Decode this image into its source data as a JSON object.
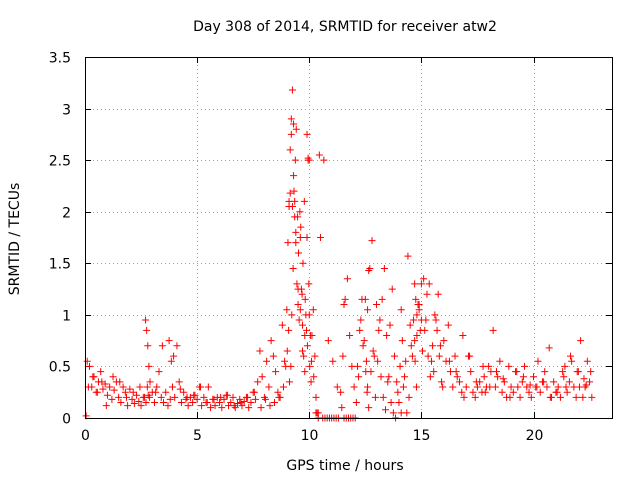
{
  "chart_data": {
    "type": "scatter",
    "title": "Day 308 of 2014, SRMTID for receiver atw2",
    "xlabel": "GPS time / hours",
    "ylabel": "SRMTID / TECUs",
    "xlim": [
      0,
      23.5
    ],
    "ylim": [
      0,
      3.5
    ],
    "xticks": [
      0,
      5,
      10,
      15,
      20
    ],
    "xtick_labels": [
      "0",
      "5",
      "10",
      "15",
      "20"
    ],
    "yticks": [
      0,
      0.5,
      1,
      1.5,
      2,
      2.5,
      3,
      3.5
    ],
    "ytick_labels": [
      "0",
      "0.5",
      "1",
      "1.5",
      "2",
      "2.5",
      "3",
      "3.5"
    ],
    "grid": true,
    "marker": "+",
    "colors": {
      "series": "#ff0000",
      "axis": "#000000",
      "grid": "#a0a0a0"
    },
    "series": [
      {
        "name": "SRMTID",
        "x": [
          0.05,
          0.1,
          0.2,
          0.3,
          0.4,
          0.5,
          0.6,
          0.7,
          0.8,
          0.9,
          1.0,
          1.1,
          1.2,
          1.3,
          1.4,
          1.5,
          1.6,
          1.7,
          1.8,
          1.9,
          2.0,
          2.1,
          2.2,
          2.3,
          2.4,
          2.5,
          2.6,
          2.7,
          2.75,
          2.8,
          2.85,
          2.9,
          3.0,
          3.1,
          3.2,
          3.3,
          3.4,
          3.5,
          3.6,
          3.7,
          3.8,
          3.9,
          4.0,
          4.1,
          4.2,
          4.3,
          4.4,
          4.5,
          4.6,
          4.7,
          4.8,
          4.9,
          5.0,
          5.1,
          5.2,
          5.3,
          5.4,
          5.5,
          5.6,
          5.7,
          5.8,
          5.9,
          6.0,
          6.1,
          6.2,
          6.3,
          6.4,
          6.5,
          6.6,
          6.7,
          6.8,
          6.9,
          7.0,
          7.1,
          7.2,
          7.3,
          7.4,
          7.5,
          7.6,
          7.7,
          7.8,
          7.9,
          8.0,
          8.1,
          8.2,
          8.3,
          8.4,
          8.5,
          8.6,
          8.7,
          8.8,
          8.9,
          9.0,
          9.05,
          9.1,
          9.15,
          9.2,
          9.25,
          9.3,
          9.35,
          9.4,
          9.45,
          9.5,
          9.55,
          9.6,
          9.65,
          9.7,
          9.75,
          9.8,
          9.85,
          9.9,
          9.95,
          10.0,
          10.05,
          10.1,
          10.2,
          10.3,
          10.35,
          10.4,
          10.5,
          10.6,
          10.7,
          10.8,
          10.9,
          11.0,
          11.1,
          11.2,
          11.3,
          11.4,
          11.5,
          11.6,
          11.7,
          11.8,
          11.9,
          12.0,
          12.1,
          12.2,
          12.3,
          12.4,
          12.5,
          12.55,
          12.6,
          12.7,
          12.8,
          12.9,
          13.0,
          13.1,
          13.2,
          13.3,
          13.4,
          13.5,
          13.6,
          13.7,
          13.8,
          13.9,
          14.0,
          14.1,
          14.2,
          14.3,
          14.4,
          14.5,
          14.6,
          14.7,
          14.75,
          14.8,
          14.9,
          15.0,
          15.1,
          15.2,
          15.3,
          15.4,
          15.5,
          15.6,
          15.7,
          15.8,
          15.9,
          16.0,
          16.1,
          16.2,
          16.3,
          16.4,
          16.5,
          16.6,
          16.7,
          16.8,
          16.9,
          17.0,
          17.1,
          17.2,
          17.3,
          17.4,
          17.5,
          17.6,
          17.7,
          17.8,
          17.9,
          18.0,
          18.1,
          18.2,
          18.3,
          18.4,
          18.5,
          18.6,
          18.7,
          18.8,
          18.9,
          19.0,
          19.1,
          19.2,
          19.3,
          19.4,
          19.5,
          19.6,
          19.7,
          19.8,
          19.9,
          20.0,
          20.1,
          20.2,
          20.3,
          20.4,
          20.5,
          20.6,
          20.7,
          20.8,
          20.9,
          21.0,
          21.1,
          21.2,
          21.3,
          21.4,
          21.5,
          21.6,
          21.7,
          21.8,
          21.9,
          22.0,
          22.1,
          22.2,
          22.3,
          22.4,
          22.5,
          22.6,
          0.15,
          0.35,
          0.55,
          0.75,
          0.95,
          1.25,
          1.55,
          1.85,
          2.15,
          2.45,
          2.65,
          2.72,
          2.78,
          2.82,
          2.88,
          3.15,
          3.45,
          3.75,
          3.85,
          3.95,
          4.25,
          4.55,
          4.85,
          5.15,
          5.45,
          5.75,
          6.05,
          6.35,
          6.65,
          6.95,
          7.25,
          7.55,
          7.85,
          8.05,
          8.25,
          8.45,
          8.65,
          8.85,
          8.95,
          9.02,
          9.08,
          9.12,
          9.18,
          9.22,
          9.28,
          9.32,
          9.38,
          9.42,
          9.48,
          9.52,
          9.58,
          9.62,
          9.68,
          9.72,
          9.78,
          9.82,
          9.88,
          9.92,
          9.98,
          10.02,
          10.08,
          10.12,
          10.18,
          10.25,
          10.45,
          10.65,
          10.85,
          11.05,
          11.25,
          11.45,
          11.55,
          11.65,
          11.75,
          11.85,
          11.95,
          12.05,
          12.15,
          12.25,
          12.35,
          12.45,
          12.52,
          12.58,
          12.65,
          12.75,
          12.85,
          12.95,
          13.05,
          13.15,
          13.25,
          13.35,
          13.45,
          13.55,
          13.65,
          13.75,
          13.85,
          13.95,
          14.05,
          14.15,
          14.25,
          14.35,
          14.45,
          14.55,
          14.65,
          14.72,
          14.78,
          14.85,
          14.95,
          15.05,
          15.15,
          15.25,
          15.35,
          15.45,
          15.55,
          15.65,
          15.75,
          15.85,
          15.95,
          16.25,
          16.55,
          16.85,
          17.15,
          17.45,
          17.75,
          17.85,
          18.05,
          18.35,
          18.65,
          18.95,
          19.25,
          19.55,
          19.85,
          20.15,
          20.45,
          20.75,
          21.05,
          21.35,
          21.45,
          21.65,
          21.95,
          22.05,
          22.25,
          22.35,
          22.55,
          9.1,
          9.2,
          9.3,
          9.4,
          9.5,
          9.6,
          9.7,
          9.8,
          9.9,
          10.0,
          14.1,
          14.7,
          14.8,
          14.9,
          15.0,
          12.6,
          12.65,
          11.55,
          10.3,
          10.4,
          9.95,
          9.15,
          9.25,
          9.35
        ],
        "y": [
          0.02,
          0.55,
          0.5,
          0.3,
          0.4,
          0.25,
          0.35,
          0.45,
          0.28,
          0.33,
          0.22,
          0.3,
          0.18,
          0.27,
          0.35,
          0.2,
          0.15,
          0.3,
          0.25,
          0.12,
          0.28,
          0.18,
          0.14,
          0.22,
          0.16,
          0.12,
          0.2,
          0.95,
          0.85,
          0.7,
          0.5,
          0.35,
          0.25,
          0.15,
          0.3,
          0.45,
          0.2,
          0.15,
          0.25,
          0.12,
          0.18,
          0.3,
          0.2,
          0.7,
          0.35,
          0.15,
          0.25,
          0.18,
          0.12,
          0.2,
          0.15,
          0.22,
          0.18,
          0.3,
          0.12,
          0.2,
          0.15,
          0.3,
          0.1,
          0.18,
          0.12,
          0.2,
          0.15,
          0.1,
          0.18,
          0.22,
          0.12,
          0.15,
          0.2,
          0.1,
          0.14,
          0.18,
          0.12,
          0.16,
          0.2,
          0.1,
          0.15,
          0.25,
          0.18,
          0.35,
          0.65,
          0.4,
          0.2,
          0.55,
          0.3,
          0.75,
          0.6,
          0.45,
          0.25,
          0.2,
          0.9,
          0.55,
          1.05,
          1.7,
          2.05,
          2.6,
          2.9,
          3.18,
          2.85,
          2.1,
          1.7,
          1.3,
          1.1,
          0.95,
          1.75,
          1.25,
          0.9,
          0.6,
          0.45,
          1.0,
          2.75,
          2.5,
          1.0,
          0.8,
          0.55,
          0.4,
          0.2,
          0.05,
          0.0,
          1.75,
          0.0,
          0.0,
          0.0,
          0.0,
          0.0,
          0.0,
          0.0,
          0.0,
          0.25,
          0.6,
          1.15,
          1.35,
          0.8,
          0.5,
          0.3,
          0.15,
          0.4,
          0.95,
          0.7,
          1.15,
          0.55,
          0.3,
          1.45,
          1.72,
          0.6,
          1.1,
          0.85,
          0.4,
          0.2,
          0.08,
          0.35,
          0.9,
          1.25,
          0.6,
          0.35,
          0.15,
          0.05,
          0.3,
          0.55,
          1.57,
          0.9,
          0.6,
          0.75,
          1.15,
          0.8,
          1.05,
          1.3,
          1.35,
          0.95,
          0.6,
          0.4,
          0.7,
          1.0,
          0.85,
          0.6,
          0.35,
          0.75,
          0.55,
          0.9,
          0.45,
          0.3,
          0.6,
          0.4,
          0.35,
          0.25,
          0.2,
          0.3,
          0.6,
          0.45,
          0.25,
          0.2,
          0.3,
          0.35,
          0.25,
          0.4,
          0.3,
          0.5,
          0.45,
          0.85,
          0.3,
          0.4,
          0.55,
          0.25,
          0.35,
          0.2,
          0.5,
          0.3,
          0.25,
          0.45,
          0.3,
          0.2,
          0.35,
          0.5,
          0.3,
          0.25,
          0.2,
          0.4,
          0.3,
          0.55,
          0.25,
          0.35,
          0.45,
          0.3,
          0.68,
          0.2,
          0.35,
          0.25,
          0.3,
          0.2,
          0.45,
          0.5,
          0.25,
          0.35,
          0.55,
          0.3,
          0.2,
          0.45,
          0.75,
          0.2,
          0.3,
          0.55,
          0.35,
          0.2,
          0.3,
          0.4,
          0.25,
          0.35,
          0.12,
          0.4,
          0.35,
          0.2,
          0.25,
          0.3,
          0.2,
          0.15,
          0.3,
          0.22,
          0.2,
          0.25,
          0.7,
          0.75,
          0.55,
          0.6,
          0.28,
          0.2,
          0.22,
          0.3,
          0.15,
          0.18,
          0.2,
          0.22,
          0.12,
          0.15,
          0.2,
          0.25,
          0.1,
          0.18,
          0.12,
          0.15,
          0.2,
          0.3,
          0.5,
          0.65,
          0.85,
          0.35,
          0.5,
          1.0,
          1.45,
          2.2,
          2.5,
          2.8,
          1.95,
          1.6,
          2.0,
          1.85,
          1.2,
          1.5,
          2.1,
          1.15,
          0.85,
          0.7,
          1.3,
          0.5,
          0.35,
          0.8,
          1.05,
          0.6,
          2.55,
          2.5,
          0.75,
          0.55,
          0.3,
          0.1,
          0.0,
          0.0,
          0.0,
          0.0,
          0.0,
          0.0,
          0.5,
          0.85,
          1.15,
          0.75,
          0.45,
          0.25,
          0.1,
          0.45,
          0.65,
          0.2,
          0.55,
          0.95,
          1.15,
          1.45,
          0.8,
          0.4,
          0.15,
          0.05,
          0.0,
          0.25,
          0.5,
          0.75,
          0.4,
          0.05,
          0.2,
          0.7,
          0.95,
          0.55,
          0.3,
          1.1,
          0.85,
          0.65,
          0.85,
          1.2,
          1.3,
          0.55,
          0.45,
          0.95,
          1.2,
          0.7,
          0.3,
          0.55,
          0.45,
          0.8,
          0.6,
          0.35,
          0.5,
          0.25,
          0.3,
          0.45,
          0.38,
          0.2,
          0.45,
          0.4,
          0.32,
          0.3,
          0.35,
          0.2,
          0.25,
          0.4,
          0.3,
          0.6,
          0.45,
          0.3,
          0.38,
          0.32,
          0.45,
          2.1,
          2.75,
          2.35,
          1.8,
          1.25,
          1.05,
          0.65,
          0.8,
          1.75,
          2.5,
          1.05,
          1.3,
          1.0,
          1.1,
          0.95,
          1.05,
          1.43,
          1.1,
          0.05,
          0.05,
          2.52,
          2.18,
          2.05,
          1.95
        ]
      }
    ]
  }
}
